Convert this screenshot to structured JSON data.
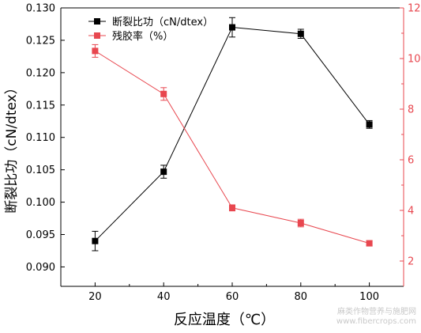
{
  "chart_data": {
    "type": "line",
    "xlabel": "反应温度（℃）",
    "x": [
      20,
      40,
      60,
      80,
      100
    ],
    "xticks": [
      "20",
      "40",
      "60",
      "80",
      "100"
    ],
    "xlim": [
      10,
      110
    ],
    "y_left": {
      "label": "断裂比功（cN/dtex）",
      "lim": [
        0.087,
        0.13
      ],
      "ticks": [
        "0.090",
        "0.095",
        "0.100",
        "0.105",
        "0.110",
        "0.115",
        "0.120",
        "0.125",
        "0.130"
      ],
      "tick_values": [
        0.09,
        0.095,
        0.1,
        0.105,
        0.11,
        0.115,
        0.12,
        0.125,
        0.13
      ],
      "color": "#000000"
    },
    "y_right": {
      "lim": [
        1,
        12
      ],
      "ticks": [
        "2",
        "4",
        "6",
        "8",
        "10",
        "12"
      ],
      "tick_values": [
        2,
        4,
        6,
        8,
        10,
        12
      ],
      "color": "#e8474f"
    },
    "series": [
      {
        "name": "断裂比功（cN/dtex）",
        "axis": "left",
        "color": "#000000",
        "values": [
          0.094,
          0.1047,
          0.127,
          0.126,
          0.112
        ],
        "errors": [
          0.0015,
          0.001,
          0.0015,
          0.0007,
          0.0006
        ]
      },
      {
        "name": "残胶率（%）",
        "axis": "right",
        "color": "#e8474f",
        "values": [
          10.3,
          8.6,
          4.1,
          3.5,
          2.7
        ],
        "errors": [
          0.25,
          0.25,
          0.12,
          0.15,
          0.1
        ]
      }
    ],
    "legend": "top-left",
    "grid": false
  },
  "watermark": {
    "line1": "麻类作物营养与施肥网",
    "line2": "www.fibercrops.com"
  }
}
